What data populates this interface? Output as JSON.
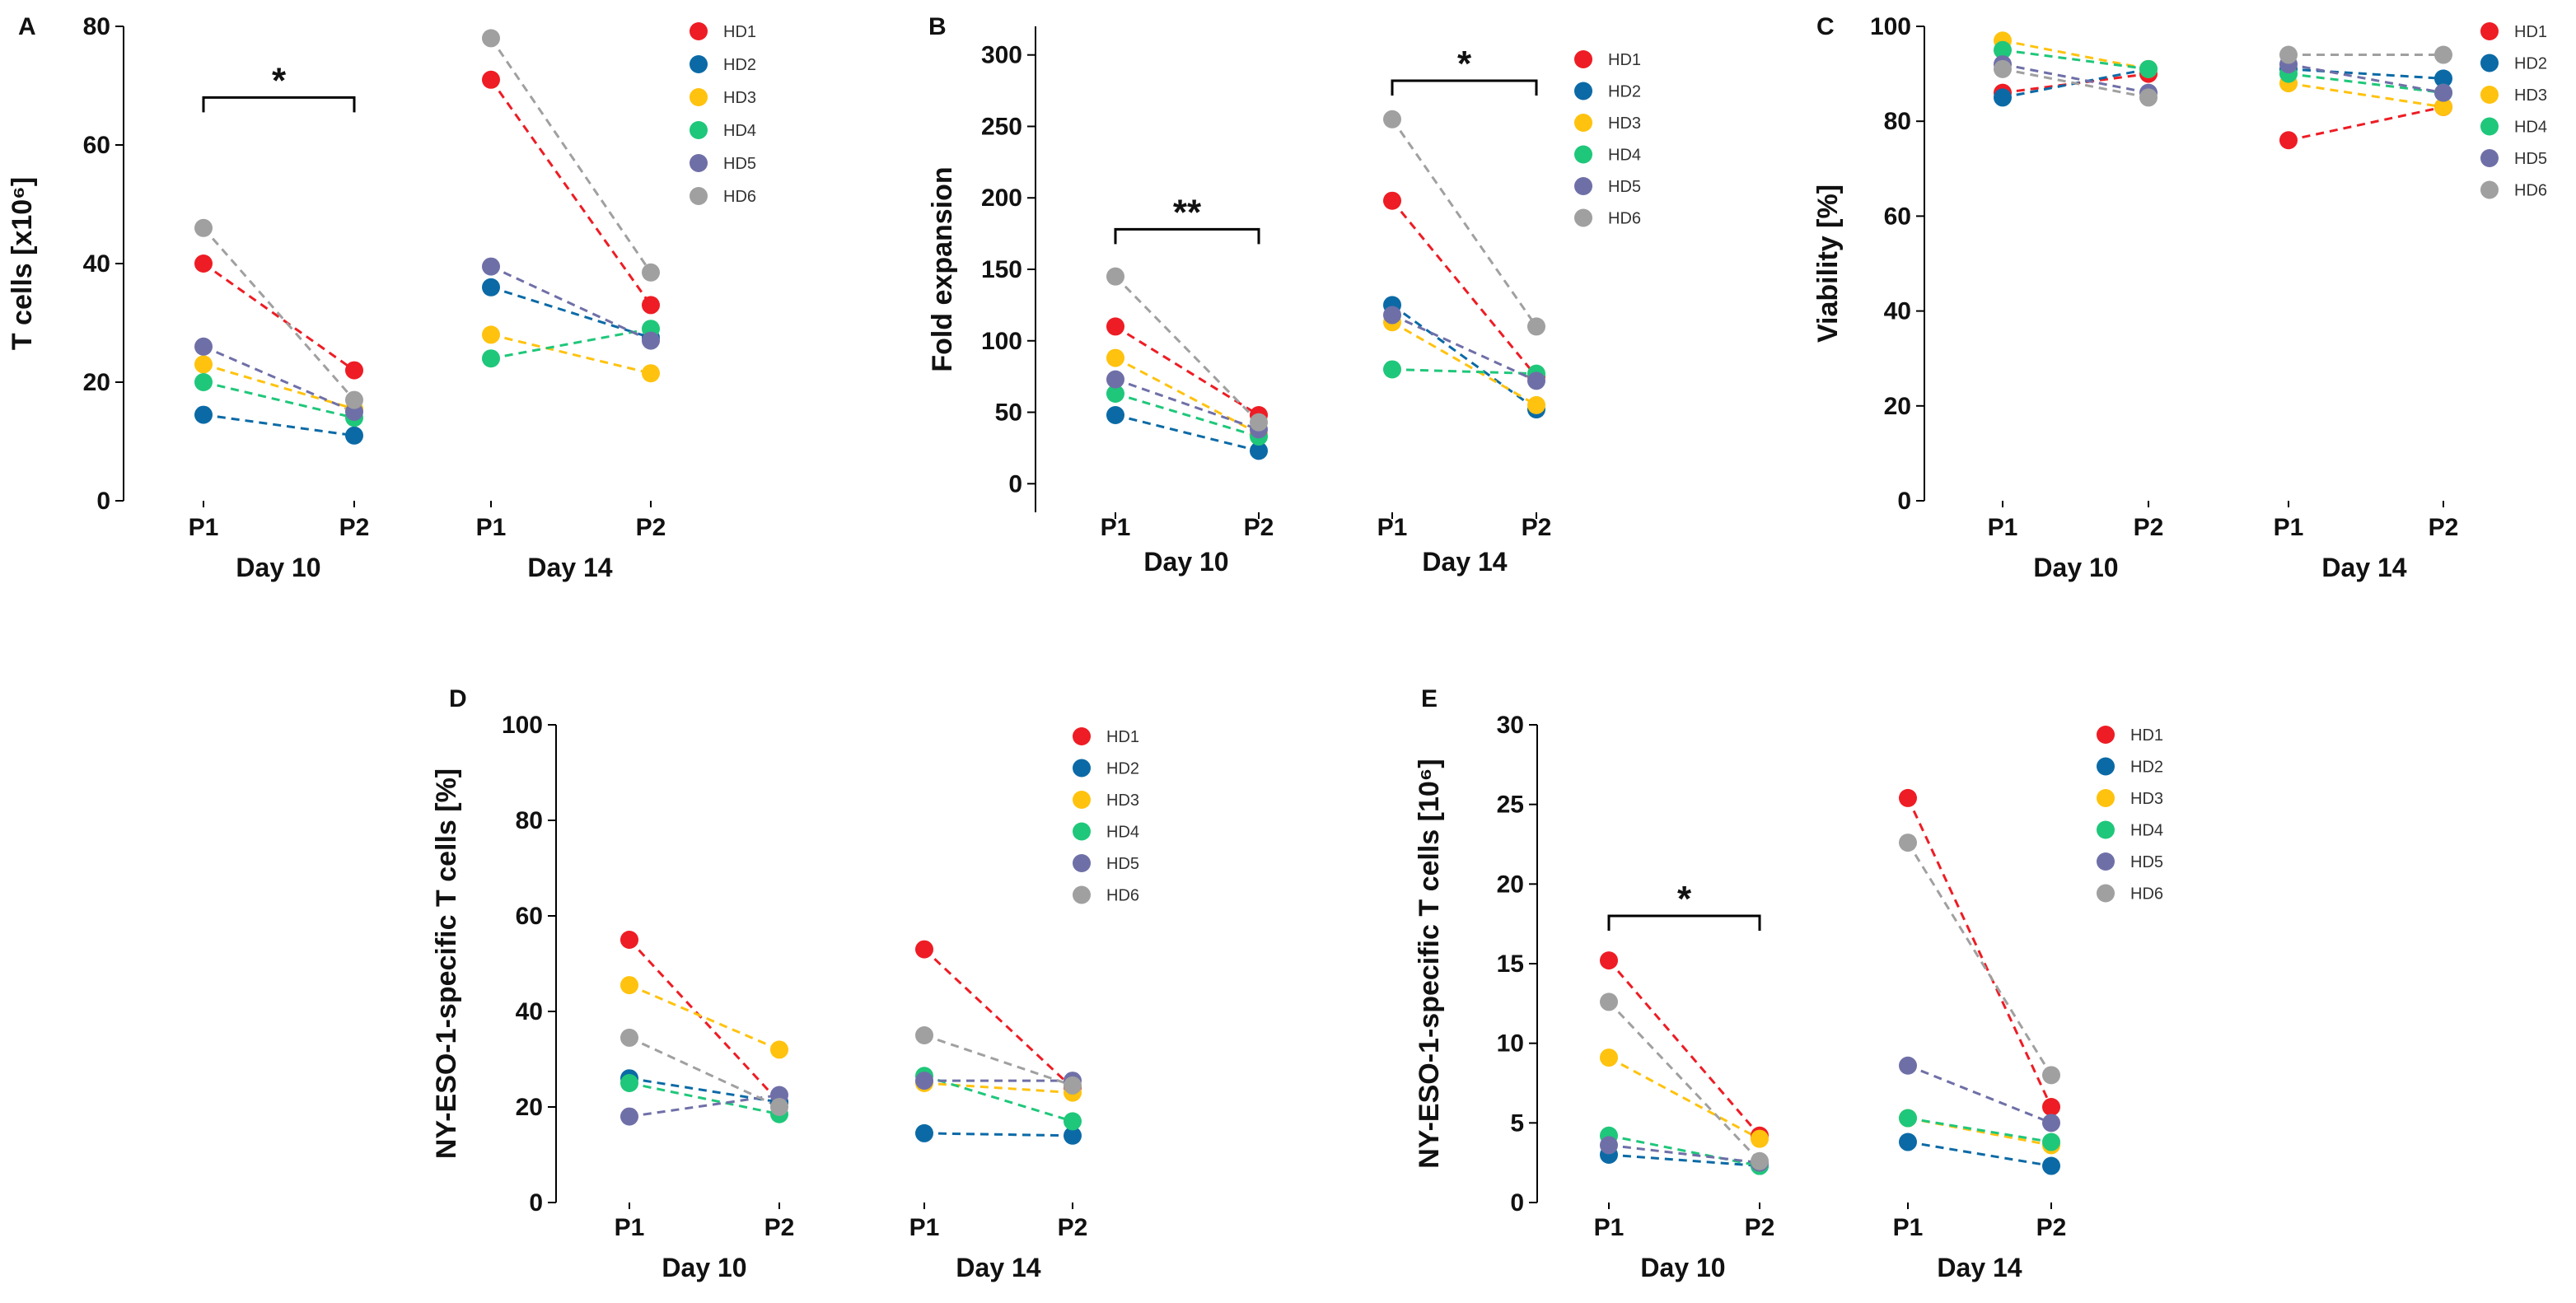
{
  "chart_data": [
    {
      "id": "A",
      "type": "scatter",
      "panel_letter": "A",
      "ylabel": "T cells [x10⁶]",
      "ylim": [
        0,
        80
      ],
      "yticks": [
        0,
        20,
        40,
        60,
        80
      ],
      "xticks": [
        "P1",
        "P2",
        "P1",
        "P2"
      ],
      "groups": [
        "Day 10",
        "Day 14"
      ],
      "significance": [
        {
          "text": "*",
          "from": 0,
          "to": 1,
          "y": 68
        }
      ],
      "series": [
        {
          "name": "HD1",
          "values": [
            40,
            22,
            71,
            33
          ]
        },
        {
          "name": "HD2",
          "values": [
            14.5,
            11,
            36,
            27.5
          ]
        },
        {
          "name": "HD3",
          "values": [
            23,
            15.5,
            28,
            21.5
          ]
        },
        {
          "name": "HD4",
          "values": [
            20,
            14,
            24,
            29
          ]
        },
        {
          "name": "HD5",
          "values": [
            26,
            15,
            39.5,
            27
          ]
        },
        {
          "name": "HD6",
          "values": [
            46,
            17,
            78,
            38.5
          ]
        }
      ]
    },
    {
      "id": "B",
      "type": "scatter",
      "panel_letter": "B",
      "ylabel": "Fold expansion",
      "ylim": [
        -20,
        320
      ],
      "yticks": [
        0,
        50,
        100,
        150,
        200,
        250,
        300
      ],
      "xticks": [
        "P1",
        "P2",
        "P1",
        "P2"
      ],
      "groups": [
        "Day 10",
        "Day 14"
      ],
      "significance": [
        {
          "text": "**",
          "from": 0,
          "to": 1,
          "y": 178
        },
        {
          "text": "*",
          "from": 2,
          "to": 3,
          "y": 282
        }
      ],
      "series": [
        {
          "name": "HD1",
          "values": [
            110,
            48,
            198,
            75
          ]
        },
        {
          "name": "HD2",
          "values": [
            48,
            23,
            125,
            52
          ]
        },
        {
          "name": "HD3",
          "values": [
            88,
            35,
            113,
            55
          ]
        },
        {
          "name": "HD4",
          "values": [
            63,
            33,
            80,
            77
          ]
        },
        {
          "name": "HD5",
          "values": [
            73,
            38,
            118,
            72
          ]
        },
        {
          "name": "HD6",
          "values": [
            145,
            43,
            255,
            110
          ]
        }
      ]
    },
    {
      "id": "C",
      "type": "scatter",
      "panel_letter": "C",
      "ylabel": "Viability [%]",
      "ylim": [
        0,
        100
      ],
      "yticks": [
        0,
        20,
        40,
        60,
        80,
        100
      ],
      "xticks": [
        "P1",
        "P2",
        "P1",
        "P2"
      ],
      "groups": [
        "Day 10",
        "Day 14"
      ],
      "significance": [],
      "series": [
        {
          "name": "HD1",
          "values": [
            86,
            90,
            76,
            83
          ]
        },
        {
          "name": "HD2",
          "values": [
            85,
            91,
            91,
            89
          ]
        },
        {
          "name": "HD3",
          "values": [
            97,
            91,
            88,
            83
          ]
        },
        {
          "name": "HD4",
          "values": [
            95,
            91,
            90,
            86
          ]
        },
        {
          "name": "HD5",
          "values": [
            92,
            86,
            92,
            86
          ]
        },
        {
          "name": "HD6",
          "values": [
            91,
            85,
            94,
            94
          ]
        }
      ]
    },
    {
      "id": "D",
      "type": "scatter",
      "panel_letter": "D",
      "ylabel": "NY-ESO-1-specific T cells [%]",
      "ylim": [
        0,
        100
      ],
      "yticks": [
        0,
        20,
        40,
        60,
        80,
        100
      ],
      "xticks": [
        "P1",
        "P2",
        "P1",
        "P2"
      ],
      "groups": [
        "Day 10",
        "Day 14"
      ],
      "significance": [],
      "series": [
        {
          "name": "HD1",
          "values": [
            55,
            21,
            53,
            24
          ]
        },
        {
          "name": "HD2",
          "values": [
            26,
            21,
            14.5,
            14
          ]
        },
        {
          "name": "HD3",
          "values": [
            45.5,
            32,
            25,
            23
          ]
        },
        {
          "name": "HD4",
          "values": [
            25,
            18.5,
            26.5,
            17
          ]
        },
        {
          "name": "HD5",
          "values": [
            18,
            22.5,
            25.5,
            25.5
          ]
        },
        {
          "name": "HD6",
          "values": [
            34.5,
            20,
            35,
            24.5
          ]
        }
      ]
    },
    {
      "id": "E",
      "type": "scatter",
      "panel_letter": "E",
      "ylabel": "NY-ESO-1-specific T cells [10⁶]",
      "ylim": [
        0,
        30
      ],
      "yticks": [
        0,
        5,
        10,
        15,
        20,
        25,
        30
      ],
      "xticks": [
        "P1",
        "P2",
        "P1",
        "P2"
      ],
      "groups": [
        "Day 10",
        "Day 14"
      ],
      "significance": [
        {
          "text": "*",
          "from": 0,
          "to": 1,
          "y": 18
        }
      ],
      "series": [
        {
          "name": "HD1",
          "values": [
            15.2,
            4.2,
            25.4,
            6
          ]
        },
        {
          "name": "HD2",
          "values": [
            3,
            2.3,
            3.8,
            2.3
          ]
        },
        {
          "name": "HD3",
          "values": [
            9.1,
            4,
            5.3,
            3.6
          ]
        },
        {
          "name": "HD4",
          "values": [
            4.2,
            2.3,
            5.3,
            3.8
          ]
        },
        {
          "name": "HD5",
          "values": [
            3.6,
            2.5,
            8.6,
            5
          ]
        },
        {
          "name": "HD6",
          "values": [
            12.6,
            2.6,
            22.6,
            8
          ]
        }
      ]
    }
  ],
  "colors": {
    "HD1": "#ee1c24",
    "HD2": "#0b6aa6",
    "HD3": "#ffc20e",
    "HD4": "#1fc77a",
    "HD5": "#6f6fa8",
    "HD6": "#a0a0a0"
  }
}
